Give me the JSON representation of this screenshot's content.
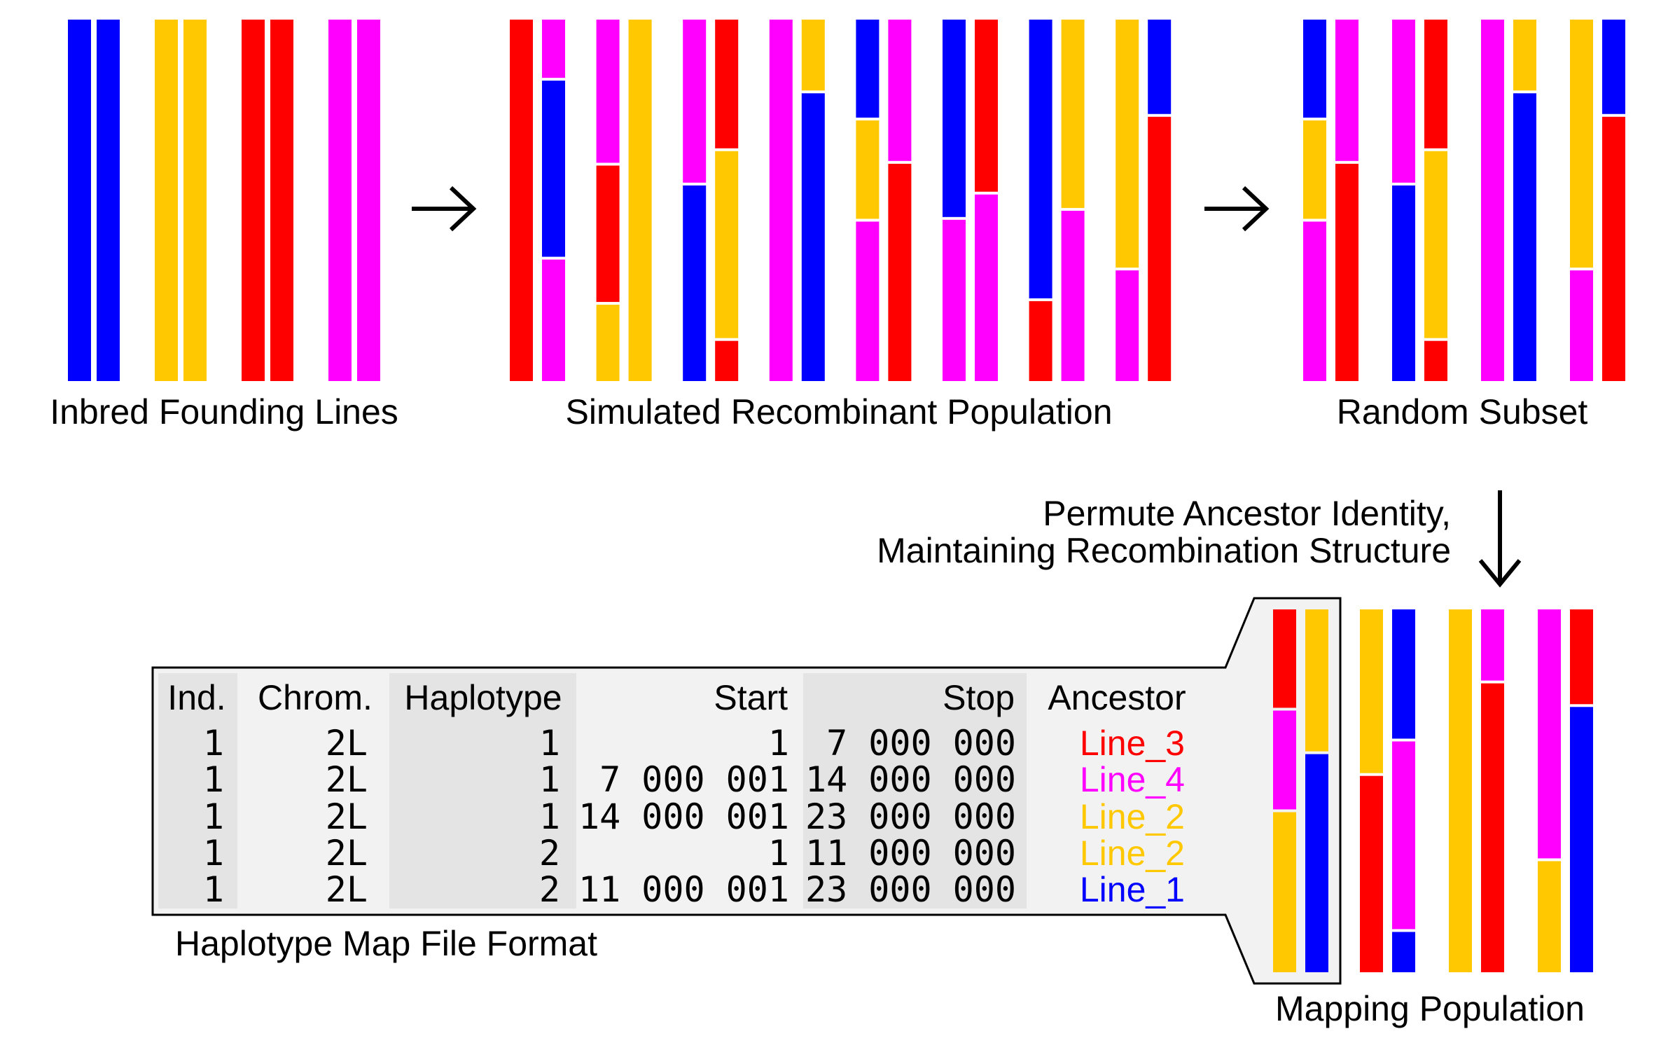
{
  "colors": {
    "line_1": "#0000FF",
    "line_2": "#FFC800",
    "line_3": "#FF0000",
    "line_4": "#FF00FF",
    "table_panel": "#F2F2F2",
    "table_stripe": "#E4E4E4"
  },
  "labels": {
    "founding": "Inbred Founding Lines",
    "recombinant": "Simulated Recombinant Population",
    "subset": "Random Subset",
    "permute_1": "Permute Ancestor Identity,",
    "permute_2": "Maintaining Recombination Structure",
    "file_format": "Haplotype Map File Format",
    "mapping": "Mapping Population"
  },
  "table": {
    "headers": [
      "Ind.",
      "Chrom.",
      "Haplotype",
      "Start",
      "Stop",
      "Ancestor"
    ],
    "rows": [
      {
        "ind": "1",
        "chrom": "2L",
        "haplotype": "1",
        "start": "1",
        "stop": "7 000 000",
        "ancestor": "Line_3"
      },
      {
        "ind": "1",
        "chrom": "2L",
        "haplotype": "1",
        "start": "7 000 001",
        "stop": "14 000 000",
        "ancestor": "Line_4"
      },
      {
        "ind": "1",
        "chrom": "2L",
        "haplotype": "1",
        "start": "14 000 001",
        "stop": "23 000 000",
        "ancestor": "Line_2"
      },
      {
        "ind": "1",
        "chrom": "2L",
        "haplotype": "2",
        "start": "1",
        "stop": "11 000 000",
        "ancestor": "Line_2"
      },
      {
        "ind": "1",
        "chrom": "2L",
        "haplotype": "2",
        "start": "11 000 001",
        "stop": "23 000 000",
        "ancestor": "Line_1"
      }
    ]
  },
  "founders": [
    [
      "line_1",
      "line_1"
    ],
    [
      "line_2",
      "line_2"
    ],
    [
      "line_3",
      "line_3"
    ],
    [
      "line_4",
      "line_4"
    ]
  ],
  "recombinants": [
    [
      [
        {
          "line": "line_3",
          "to": 1
        }
      ],
      [
        {
          "line": "line_4",
          "to": 0.165
        },
        {
          "line": "line_1",
          "to": 0.66
        },
        {
          "line": "line_4",
          "to": 1
        }
      ]
    ],
    [
      [
        {
          "line": "line_4",
          "to": 0.4
        },
        {
          "line": "line_3",
          "to": 0.785
        },
        {
          "line": "line_2",
          "to": 1
        }
      ],
      [
        {
          "line": "line_2",
          "to": 1
        }
      ]
    ],
    [
      [
        {
          "line": "line_4",
          "to": 0.455
        },
        {
          "line": "line_1",
          "to": 1
        }
      ],
      [
        {
          "line": "line_3",
          "to": 0.36
        },
        {
          "line": "line_2",
          "to": 0.885
        },
        {
          "line": "line_3",
          "to": 1
        }
      ]
    ],
    [
      [
        {
          "line": "line_4",
          "to": 1
        }
      ],
      [
        {
          "line": "line_2",
          "to": 0.2
        },
        {
          "line": "line_1",
          "to": 1
        }
      ]
    ],
    [
      [
        {
          "line": "line_1",
          "to": 0.275
        },
        {
          "line": "line_2",
          "to": 0.555
        },
        {
          "line": "line_4",
          "to": 1
        }
      ],
      [
        {
          "line": "line_4",
          "to": 0.395
        },
        {
          "line": "line_3",
          "to": 1
        }
      ]
    ],
    [
      [
        {
          "line": "line_1",
          "to": 0.55
        },
        {
          "line": "line_4",
          "to": 1
        }
      ],
      [
        {
          "line": "line_3",
          "to": 0.48
        },
        {
          "line": "line_4",
          "to": 1
        }
      ]
    ],
    [
      [
        {
          "line": "line_1",
          "to": 0.775
        },
        {
          "line": "line_3",
          "to": 1
        }
      ],
      [
        {
          "line": "line_2",
          "to": 0.525
        },
        {
          "line": "line_4",
          "to": 1
        }
      ]
    ],
    [
      [
        {
          "line": "line_2",
          "to": 0.69
        },
        {
          "line": "line_4",
          "to": 1
        }
      ],
      [
        {
          "line": "line_1",
          "to": 0.265
        },
        {
          "line": "line_3",
          "to": 1
        }
      ]
    ]
  ],
  "subset": [
    [
      [
        {
          "line": "line_1",
          "to": 0.275
        },
        {
          "line": "line_2",
          "to": 0.555
        },
        {
          "line": "line_4",
          "to": 1
        }
      ],
      [
        {
          "line": "line_4",
          "to": 0.395
        },
        {
          "line": "line_3",
          "to": 1
        }
      ]
    ],
    [
      [
        {
          "line": "line_4",
          "to": 0.455
        },
        {
          "line": "line_1",
          "to": 1
        }
      ],
      [
        {
          "line": "line_3",
          "to": 0.36
        },
        {
          "line": "line_2",
          "to": 0.885
        },
        {
          "line": "line_3",
          "to": 1
        }
      ]
    ],
    [
      [
        {
          "line": "line_4",
          "to": 1
        }
      ],
      [
        {
          "line": "line_2",
          "to": 0.2
        },
        {
          "line": "line_1",
          "to": 1
        }
      ]
    ],
    [
      [
        {
          "line": "line_2",
          "to": 0.69
        },
        {
          "line": "line_4",
          "to": 1
        }
      ],
      [
        {
          "line": "line_1",
          "to": 0.265
        },
        {
          "line": "line_3",
          "to": 1
        }
      ]
    ]
  ],
  "mapping": [
    [
      [
        {
          "line": "line_3",
          "to": 0.275
        },
        {
          "line": "line_4",
          "to": 0.555
        },
        {
          "line": "line_2",
          "to": 1
        }
      ],
      [
        {
          "line": "line_2",
          "to": 0.395
        },
        {
          "line": "line_1",
          "to": 1
        }
      ]
    ],
    [
      [
        {
          "line": "line_2",
          "to": 0.455
        },
        {
          "line": "line_3",
          "to": 1
        }
      ],
      [
        {
          "line": "line_1",
          "to": 0.36
        },
        {
          "line": "line_4",
          "to": 0.885
        },
        {
          "line": "line_1",
          "to": 1
        }
      ]
    ],
    [
      [
        {
          "line": "line_2",
          "to": 1
        }
      ],
      [
        {
          "line": "line_4",
          "to": 0.2
        },
        {
          "line": "line_3",
          "to": 1
        }
      ]
    ],
    [
      [
        {
          "line": "line_4",
          "to": 0.69
        },
        {
          "line": "line_2",
          "to": 1
        }
      ],
      [
        {
          "line": "line_3",
          "to": 0.265
        },
        {
          "line": "line_1",
          "to": 1
        }
      ]
    ]
  ]
}
